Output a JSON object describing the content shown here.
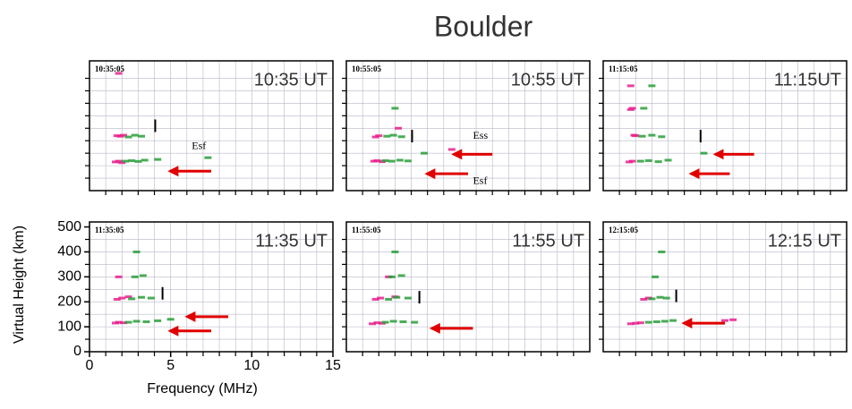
{
  "title": "Boulder",
  "chart_data": [
    {
      "type": "scatter",
      "subtitle": "10:35:05",
      "title": "10:35 UT",
      "xlim": [
        0,
        15
      ],
      "ylim": [
        0,
        520
      ],
      "annotations": [
        "Esf"
      ],
      "series": [
        {
          "color": "#e8208c",
          "x": [
            1.6,
            1.8,
            2.0,
            1.7,
            1.9,
            2.1,
            1.8
          ],
          "values": [
            115,
            118,
            112,
            220,
            218,
            222,
            470
          ]
        },
        {
          "color": "#2a9d3a",
          "x": [
            2.2,
            2.6,
            3.0,
            3.4,
            2.4,
            2.8,
            3.2,
            4.2,
            7.3
          ],
          "values": [
            118,
            120,
            117,
            122,
            215,
            222,
            218,
            125,
            132
          ]
        }
      ]
    },
    {
      "type": "scatter",
      "subtitle": "10:55:05",
      "title": "10:55 UT",
      "xlim": [
        0,
        15
      ],
      "ylim": [
        0,
        520
      ],
      "annotations": [
        "Ess",
        "Esf"
      ],
      "series": [
        {
          "color": "#e8208c",
          "x": [
            1.7,
            1.9,
            2.2,
            1.8,
            2.0,
            3.2,
            6.5
          ],
          "values": [
            118,
            120,
            116,
            215,
            220,
            250,
            165
          ]
        },
        {
          "color": "#2a9d3a",
          "x": [
            2.4,
            2.8,
            3.3,
            3.8,
            2.5,
            2.9,
            3.4,
            4.8,
            3.0
          ],
          "values": [
            120,
            118,
            122,
            119,
            218,
            222,
            216,
            150,
            330
          ]
        }
      ]
    },
    {
      "type": "scatter",
      "subtitle": "11:15:05",
      "title": "11:15UT",
      "xlim": [
        0,
        15
      ],
      "ylim": [
        0,
        520
      ],
      "annotations": [],
      "series": [
        {
          "color": "#e8208c",
          "x": [
            1.6,
            1.8,
            2.0,
            1.7,
            1.9,
            1.7,
            1.8
          ],
          "values": [
            115,
            118,
            220,
            325,
            222,
            420,
            330
          ]
        },
        {
          "color": "#2a9d3a",
          "x": [
            2.3,
            2.8,
            3.4,
            4.0,
            2.4,
            3.0,
            3.6,
            2.5,
            3.0,
            6.2
          ],
          "values": [
            118,
            120,
            116,
            122,
            218,
            222,
            216,
            330,
            420,
            150
          ]
        }
      ]
    },
    {
      "type": "scatter",
      "subtitle": "11:35:05",
      "title": "11:35 UT",
      "xlim": [
        0,
        15
      ],
      "ylim": [
        0,
        520
      ],
      "xticks": [
        0,
        5,
        10,
        15
      ],
      "yticks": [
        0,
        100,
        200,
        300,
        400,
        500
      ],
      "xlabel": "Frequency (MHz)",
      "ylabel": "Virtual Height (km)",
      "annotations": [],
      "series": [
        {
          "color": "#e8208c",
          "x": [
            1.6,
            1.8,
            2.1,
            1.7,
            2.0,
            2.4,
            1.8
          ],
          "values": [
            115,
            118,
            116,
            210,
            215,
            220,
            300
          ]
        },
        {
          "color": "#2a9d3a",
          "x": [
            2.4,
            2.9,
            3.5,
            4.2,
            5.0,
            2.6,
            3.2,
            3.8,
            2.8,
            3.3,
            2.9
          ],
          "values": [
            118,
            122,
            120,
            124,
            130,
            212,
            218,
            215,
            300,
            305,
            400
          ]
        }
      ]
    },
    {
      "type": "scatter",
      "subtitle": "11:55:05",
      "title": "11:55 UT",
      "xlim": [
        0,
        15
      ],
      "ylim": [
        0,
        520
      ],
      "annotations": [],
      "series": [
        {
          "color": "#e8208c",
          "x": [
            1.6,
            1.9,
            2.2,
            1.8,
            2.1,
            2.6,
            3.0
          ],
          "values": [
            112,
            116,
            114,
            210,
            215,
            300,
            220
          ]
        },
        {
          "color": "#2a9d3a",
          "x": [
            2.4,
            2.9,
            3.5,
            4.2,
            2.6,
            3.1,
            3.8,
            2.8,
            3.4,
            3.0
          ],
          "values": [
            118,
            122,
            120,
            118,
            210,
            218,
            215,
            300,
            305,
            400
          ]
        }
      ]
    },
    {
      "type": "scatter",
      "subtitle": "12:15:05",
      "title": "12:15 UT",
      "xlim": [
        0,
        15
      ],
      "ylim": [
        0,
        520
      ],
      "annotations": [],
      "series": [
        {
          "color": "#e8208c",
          "x": [
            1.7,
            2.0,
            2.3,
            2.5,
            2.8,
            7.5,
            8.0
          ],
          "values": [
            112,
            114,
            116,
            210,
            215,
            125,
            128
          ]
        },
        {
          "color": "#2a9d3a",
          "x": [
            2.8,
            3.3,
            3.8,
            4.3,
            3.0,
            3.5,
            3.9,
            3.2,
            3.6
          ],
          "values": [
            118,
            120,
            122,
            125,
            212,
            218,
            215,
            300,
            400
          ]
        }
      ]
    }
  ]
}
